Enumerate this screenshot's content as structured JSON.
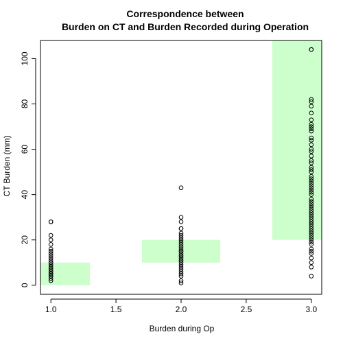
{
  "chart_data": {
    "type": "scatter",
    "title_lines": [
      "Correspondence between",
      "Burden on CT and Burden Recorded during Operation"
    ],
    "xlabel": "Burden during Op",
    "ylabel": "CT Burden (mm)",
    "xlim": [
      0.92,
      3.08
    ],
    "ylim": [
      -4,
      108
    ],
    "x_ticks": [
      1.0,
      1.5,
      2.0,
      2.5,
      3.0
    ],
    "x_tick_labels": [
      "1.0",
      "1.5",
      "2.0",
      "2.5",
      "3.0"
    ],
    "y_ticks": [
      0,
      20,
      40,
      60,
      80,
      100
    ],
    "y_tick_labels": [
      "0",
      "20",
      "40",
      "60",
      "80",
      "100"
    ],
    "grid": false,
    "colors": {
      "band": "#ccffcc",
      "point": "#000000"
    },
    "bands": [
      {
        "x0": 0.7,
        "x1": 1.3,
        "y0": 0,
        "y1": 10
      },
      {
        "x0": 1.7,
        "x1": 2.3,
        "y0": 10,
        "y1": 20
      },
      {
        "x0": 2.7,
        "x1": 3.3,
        "y0": 20,
        "y1": 108
      }
    ],
    "groups": [
      {
        "x": 1.0,
        "y": [
          2,
          3,
          4,
          4,
          5,
          5,
          5,
          6,
          6,
          7,
          7,
          8,
          8,
          9,
          10,
          10,
          11,
          12,
          13,
          14,
          15,
          16,
          18,
          20,
          22,
          28,
          28
        ]
      },
      {
        "x": 2.0,
        "y": [
          1,
          2,
          4,
          5,
          6,
          7,
          8,
          9,
          10,
          11,
          11,
          12,
          13,
          13,
          14,
          15,
          15,
          16,
          17,
          18,
          19,
          20,
          21,
          22,
          23,
          25,
          25,
          28,
          30,
          43
        ]
      },
      {
        "x": 3.0,
        "y": [
          4,
          8,
          10,
          12,
          14,
          15,
          16,
          18,
          19,
          20,
          21,
          22,
          23,
          24,
          25,
          26,
          27,
          28,
          29,
          30,
          31,
          32,
          33,
          34,
          35,
          36,
          37,
          38,
          40,
          41,
          42,
          43,
          44,
          45,
          46,
          47,
          48,
          50,
          51,
          52,
          54,
          55,
          57,
          59,
          60,
          62,
          64,
          65,
          68,
          69,
          70,
          71,
          73,
          76,
          79,
          81,
          82,
          104,
          104
        ]
      }
    ]
  }
}
